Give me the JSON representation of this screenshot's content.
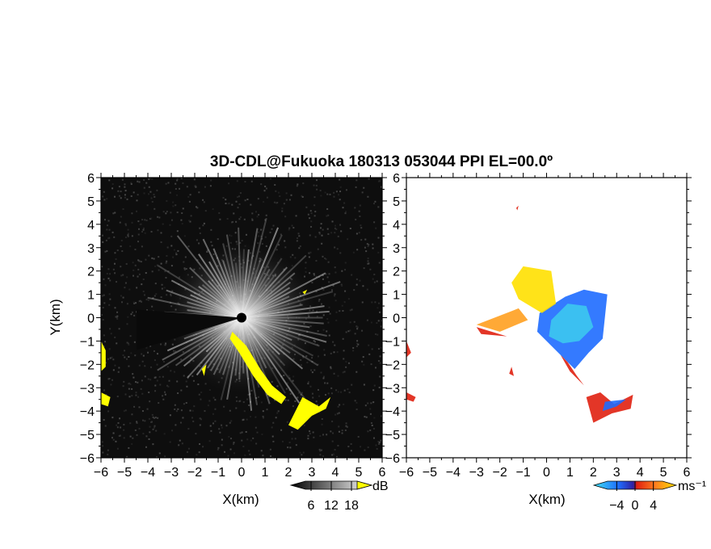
{
  "title": "3D-CDL@Fukuoka 180313 053044 PPI EL=00.0º",
  "colors": {
    "dark_field": "#0e0e0e",
    "echo_white": "#f0f0f0",
    "highlight": "#ffff00",
    "vel_negative": "#1e6cff",
    "vel_cyan": "#3cc8f0",
    "vel_zero": "#e02010",
    "vel_positive": "#ffa020",
    "vel_yellow": "#ffe000"
  },
  "chart_data": [
    {
      "type": "heatmap",
      "panel": "left",
      "field": "reflectivity (SNR)",
      "xlabel": "X(km)",
      "ylabel": "Y(km)",
      "xlim": [
        -6,
        6
      ],
      "ylim": [
        -6,
        6
      ],
      "xticks": [
        "−6",
        "−5",
        "−4",
        "−3",
        "−2",
        "−1",
        "0",
        "1",
        "2",
        "3",
        "4",
        "5",
        "6"
      ],
      "yticks": [
        "6",
        "5",
        "4",
        "3",
        "2",
        "1",
        "0",
        "−1",
        "−2",
        "−3",
        "−4",
        "−5",
        "−6"
      ],
      "colorbar": {
        "unit": "dB",
        "ticks": [
          "6",
          "12",
          "18"
        ],
        "range": [
          0,
          24
        ]
      },
      "highlight_regions_km": [
        [
          [
            -0.4,
            -0.6
          ],
          [
            0.2,
            -1.2
          ],
          [
            0.8,
            -2.2
          ],
          [
            1.3,
            -2.9
          ],
          [
            1.9,
            -3.4
          ],
          [
            1.7,
            -3.7
          ],
          [
            1.1,
            -3.3
          ],
          [
            0.5,
            -2.5
          ],
          [
            -0.1,
            -1.5
          ],
          [
            -0.5,
            -0.9
          ]
        ],
        [
          [
            2.0,
            -4.6
          ],
          [
            2.6,
            -3.4
          ],
          [
            3.3,
            -3.8
          ],
          [
            3.8,
            -3.4
          ],
          [
            3.6,
            -3.9
          ],
          [
            3.0,
            -4.2
          ],
          [
            2.4,
            -4.8
          ]
        ],
        [
          [
            -6.0,
            -1.0
          ],
          [
            -5.8,
            -1.4
          ],
          [
            -5.8,
            -2.1
          ],
          [
            -6.0,
            -2.3
          ]
        ],
        [
          [
            -6.0,
            -3.2
          ],
          [
            -5.6,
            -3.4
          ],
          [
            -5.7,
            -3.8
          ],
          [
            -6.0,
            -3.7
          ]
        ],
        [
          [
            -1.7,
            -2.2
          ],
          [
            -1.5,
            -2.0
          ],
          [
            -1.6,
            -2.5
          ]
        ],
        [
          [
            2.6,
            1.1
          ],
          [
            2.8,
            1.2
          ],
          [
            2.7,
            1.0
          ]
        ]
      ]
    },
    {
      "type": "heatmap",
      "panel": "right",
      "field": "Doppler velocity",
      "xlabel": "X(km)",
      "ylabel": "",
      "xlim": [
        -6,
        6
      ],
      "ylim": [
        -6,
        6
      ],
      "xticks": [
        "−6",
        "−5",
        "−4",
        "−3",
        "−2",
        "−1",
        "0",
        "1",
        "2",
        "3",
        "4",
        "5",
        "6"
      ],
      "yticks": [
        "6",
        "5",
        "4",
        "3",
        "2",
        "1",
        "0",
        "−1",
        "−2",
        "−3",
        "−4",
        "−5",
        "−6"
      ],
      "colorbar": {
        "unit": "ms⁻¹",
        "ticks": [
          "−4",
          "0",
          "4"
        ],
        "range": [
          -6,
          6
        ]
      },
      "regions_km": [
        {
          "velocity": -4,
          "points": [
            [
              -0.3,
              0.2
            ],
            [
              0.8,
              0.9
            ],
            [
              1.6,
              1.2
            ],
            [
              2.6,
              1.0
            ],
            [
              2.4,
              -0.9
            ],
            [
              1.8,
              -1.5
            ],
            [
              1.2,
              -2.2
            ],
            [
              0.4,
              -1.4
            ],
            [
              -0.4,
              -0.6
            ]
          ]
        },
        {
          "velocity": -1.5,
          "points": [
            [
              0.2,
              -0.1
            ],
            [
              0.9,
              0.6
            ],
            [
              1.7,
              0.5
            ],
            [
              2.0,
              -0.4
            ],
            [
              1.4,
              -1.0
            ],
            [
              0.7,
              -1.1
            ],
            [
              0.1,
              -0.8
            ]
          ]
        },
        {
          "velocity": 3,
          "points": [
            [
              -1.5,
              1.5
            ],
            [
              -1.0,
              2.2
            ],
            [
              0.2,
              2.0
            ],
            [
              0.4,
              0.6
            ],
            [
              -0.2,
              0.2
            ],
            [
              -1.2,
              0.8
            ]
          ]
        },
        {
          "velocity": 4.5,
          "points": [
            [
              -3.0,
              -0.3
            ],
            [
              -1.2,
              0.4
            ],
            [
              -0.8,
              -0.1
            ],
            [
              -2.0,
              -0.6
            ]
          ]
        },
        {
          "velocity": 0,
          "points": [
            [
              -3.0,
              -0.4
            ],
            [
              -1.7,
              -0.8
            ],
            [
              -2.8,
              -0.7
            ]
          ]
        },
        {
          "velocity": 0,
          "points": [
            [
              0.6,
              -1.6
            ],
            [
              1.0,
              -2.3
            ],
            [
              1.6,
              -2.9
            ],
            [
              1.3,
              -2.5
            ],
            [
              0.9,
              -1.9
            ]
          ]
        },
        {
          "velocity": 0,
          "points": [
            [
              1.7,
              -3.4
            ],
            [
              2.3,
              -3.2
            ],
            [
              2.9,
              -3.7
            ],
            [
              3.7,
              -3.3
            ],
            [
              3.6,
              -3.9
            ],
            [
              2.8,
              -4.1
            ],
            [
              2.0,
              -4.5
            ]
          ]
        },
        {
          "velocity": -4,
          "points": [
            [
              2.5,
              -3.6
            ],
            [
              3.4,
              -3.5
            ],
            [
              3.0,
              -3.8
            ],
            [
              2.4,
              -4.0
            ]
          ]
        },
        {
          "velocity": 0,
          "points": [
            [
              -6.0,
              -1.0
            ],
            [
              -5.8,
              -1.5
            ],
            [
              -6.0,
              -1.7
            ]
          ]
        },
        {
          "velocity": 0,
          "points": [
            [
              -6.0,
              -3.2
            ],
            [
              -5.6,
              -3.4
            ],
            [
              -5.7,
              -3.6
            ],
            [
              -6.0,
              -3.5
            ]
          ]
        },
        {
          "velocity": 0,
          "points": [
            [
              -1.5,
              -2.1
            ],
            [
              -1.4,
              -2.5
            ],
            [
              -1.6,
              -2.4
            ]
          ]
        },
        {
          "velocity": 0,
          "points": [
            [
              -1.3,
              4.7
            ],
            [
              -1.2,
              4.8
            ],
            [
              -1.25,
              4.6
            ]
          ]
        }
      ]
    }
  ]
}
